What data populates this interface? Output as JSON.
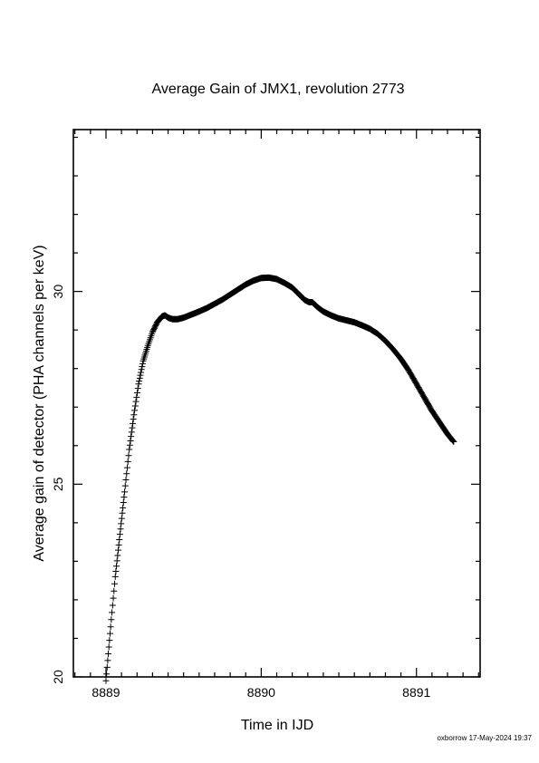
{
  "chart_data": {
    "type": "scatter",
    "title": "Average Gain of JMX1, revolution 2773",
    "xlabel": "Time in IJD",
    "ylabel": "Average gain of detector (PHA channels per keV)",
    "xlim": [
      8888.79,
      8891.41
    ],
    "ylim": [
      20,
      34.2
    ],
    "x_major_ticks": [
      8889,
      8890,
      8891
    ],
    "x_tick_labels": [
      "8889",
      "8890",
      "8891"
    ],
    "x_minor_step": 0.1,
    "y_major_ticks": [
      20,
      25,
      30
    ],
    "y_tick_labels": [
      "20",
      "25",
      "30"
    ],
    "y_minor_step": 1,
    "grid": false,
    "marker": "plus",
    "series": [
      {
        "points": [
          [
            8889.0,
            19.9
          ],
          [
            8889.03,
            21.3
          ],
          [
            8889.06,
            22.6
          ],
          [
            8889.09,
            23.7
          ],
          [
            8889.12,
            24.8
          ],
          [
            8889.15,
            25.9
          ],
          [
            8889.18,
            26.8
          ],
          [
            8889.21,
            27.6
          ],
          [
            8889.24,
            28.2
          ],
          [
            8889.27,
            28.6
          ],
          [
            8889.3,
            28.95
          ],
          [
            8889.33,
            29.2
          ],
          [
            8889.36,
            29.35
          ],
          [
            8889.38,
            29.38
          ],
          [
            8889.4,
            29.32
          ],
          [
            8889.43,
            29.28
          ],
          [
            8889.46,
            29.28
          ],
          [
            8889.5,
            29.32
          ],
          [
            8889.55,
            29.4
          ],
          [
            8889.6,
            29.48
          ],
          [
            8889.65,
            29.57
          ],
          [
            8889.7,
            29.68
          ],
          [
            8889.75,
            29.79
          ],
          [
            8889.8,
            29.92
          ],
          [
            8889.85,
            30.05
          ],
          [
            8889.9,
            30.18
          ],
          [
            8889.95,
            30.28
          ],
          [
            8890.0,
            30.35
          ],
          [
            8890.05,
            30.36
          ],
          [
            8890.1,
            30.32
          ],
          [
            8890.15,
            30.22
          ],
          [
            8890.2,
            30.1
          ],
          [
            8890.25,
            29.9
          ],
          [
            8890.28,
            29.78
          ],
          [
            8890.31,
            29.72
          ],
          [
            8890.33,
            29.72
          ],
          [
            8890.36,
            29.6
          ],
          [
            8890.4,
            29.48
          ],
          [
            8890.45,
            29.38
          ],
          [
            8890.5,
            29.3
          ],
          [
            8890.55,
            29.25
          ],
          [
            8890.6,
            29.2
          ],
          [
            8890.65,
            29.12
          ],
          [
            8890.7,
            29.03
          ],
          [
            8890.75,
            28.9
          ],
          [
            8890.8,
            28.72
          ],
          [
            8890.85,
            28.5
          ],
          [
            8890.9,
            28.25
          ],
          [
            8890.95,
            27.95
          ],
          [
            8891.0,
            27.6
          ],
          [
            8891.05,
            27.25
          ],
          [
            8891.1,
            26.9
          ],
          [
            8891.15,
            26.6
          ],
          [
            8891.2,
            26.3
          ],
          [
            8891.24,
            26.1
          ]
        ]
      }
    ]
  },
  "footer_text": "oxborrow 17-May-2024 19:37"
}
